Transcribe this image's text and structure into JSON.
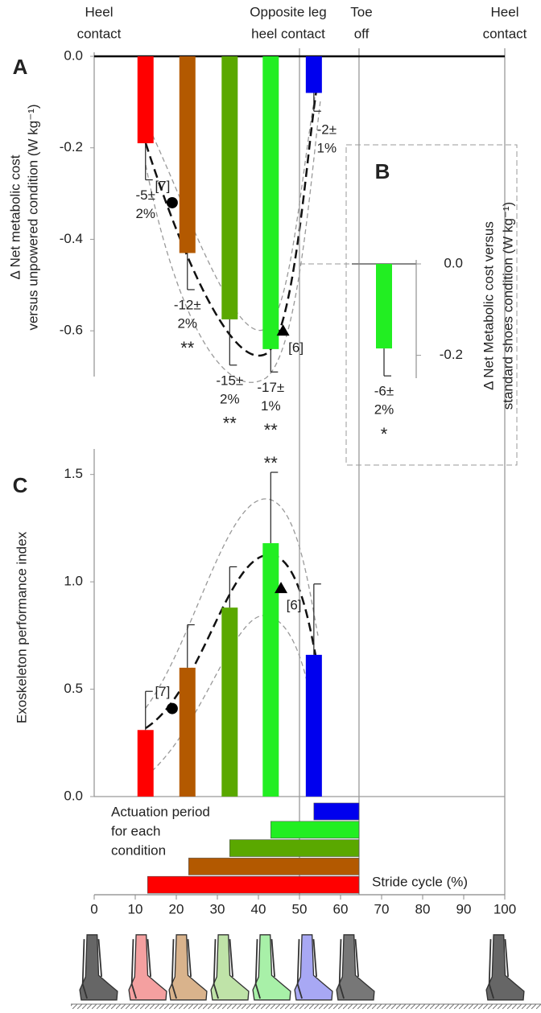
{
  "header": {
    "events": [
      {
        "x": 0,
        "label": [
          "Heel",
          "contact"
        ]
      },
      {
        "x": 50,
        "label": [
          "Opposite leg",
          "heel contact"
        ]
      },
      {
        "x": 64.5,
        "label": [
          "Toe",
          "off"
        ]
      },
      {
        "x": 100,
        "label": [
          "Heel",
          "contact"
        ]
      }
    ]
  },
  "chart_data": [
    {
      "type": "bar",
      "panel": "A",
      "ylabel": [
        "Δ Net metabolic cost",
        "versus unpowered condition (W kg⁻¹)"
      ],
      "x": [
        12.5,
        22.7,
        33,
        43,
        53.5
      ],
      "values": [
        -0.19,
        -0.43,
        -0.575,
        -0.64,
        -0.08
      ],
      "errors": [
        0.08,
        0.08,
        0.1,
        0.05,
        0.04
      ],
      "colors": [
        "#ff0000",
        "#b35900",
        "#5aa800",
        "#22ee22",
        "#0000ee"
      ],
      "annotations": [
        [
          "-5±",
          "2%"
        ],
        [
          "-12±",
          "2%"
        ],
        [
          "-15±",
          "2%"
        ],
        [
          "-17±",
          "1%"
        ],
        [
          "-2±",
          "1%"
        ]
      ],
      "significance": [
        null,
        "**",
        "**",
        "**",
        null
      ],
      "significance_color": "#111111",
      "reference_points": [
        {
          "x": 19,
          "y": -0.32,
          "label": "[7]",
          "marker": "circle"
        },
        {
          "x": 46,
          "y": -0.6,
          "label": "[6]",
          "marker": "triangle"
        }
      ],
      "xlim": [
        0,
        100
      ],
      "ylim": [
        -0.7,
        0
      ],
      "yticks": [
        {
          "value": 0,
          "label": "0.0"
        },
        {
          "value": -0.2,
          "label": "-0.2"
        },
        {
          "value": -0.4,
          "label": "-0.4"
        },
        {
          "value": -0.6,
          "label": "-0.6"
        }
      ]
    },
    {
      "type": "bar",
      "panel": "B",
      "ylabel": [
        "Δ Net Metabolic cost versus",
        "standard shoes condition (W kg⁻¹)"
      ],
      "values": [
        -0.185
      ],
      "errors": [
        0.06
      ],
      "colors": [
        "#22ee22"
      ],
      "annotations": [
        [
          "-6±",
          "2%"
        ]
      ],
      "significance": [
        "*"
      ],
      "significance_color": "#111111",
      "ylim": [
        -0.25,
        0
      ],
      "yticks": [
        {
          "value": 0,
          "label": "0.0"
        },
        {
          "value": -0.2,
          "label": "-0.2"
        }
      ]
    },
    {
      "type": "bar",
      "panel": "C",
      "ylabel": [
        "Exoskeleton  performance index"
      ],
      "x": [
        12.5,
        22.7,
        33,
        43,
        53.5
      ],
      "values": [
        0.31,
        0.6,
        0.88,
        1.18,
        0.66
      ],
      "errors": [
        0.18,
        0.2,
        0.19,
        0.33,
        0.33
      ],
      "colors": [
        "#ff0000",
        "#b35900",
        "#5aa800",
        "#22ee22",
        "#0000ee"
      ],
      "significance": [
        null,
        null,
        null,
        "**",
        null
      ],
      "significance_color": "#ff2020",
      "reference_points": [
        {
          "x": 19,
          "y": 0.41,
          "label": "[7]",
          "marker": "circle"
        },
        {
          "x": 45.5,
          "y": 0.97,
          "label": "[6]",
          "marker": "triangle"
        }
      ],
      "xlim": [
        0,
        100
      ],
      "ylim": [
        0,
        1.6
      ],
      "yticks": [
        {
          "value": 0,
          "label": "0.0"
        },
        {
          "value": 0.5,
          "label": "0.5"
        },
        {
          "value": 1,
          "label": "1.0"
        },
        {
          "value": 1.5,
          "label": "1.5"
        }
      ]
    },
    {
      "type": "range",
      "title": [
        "Actuation period",
        "for each",
        "condition"
      ],
      "xlabel": "Stride cycle (%)",
      "start": [
        13,
        23,
        33,
        43,
        53.5
      ],
      "end": [
        64.5,
        64.5,
        64.5,
        64.5,
        64.5
      ],
      "colors": [
        "#ff0000",
        "#b35900",
        "#5aa800",
        "#22ee22",
        "#0000ee"
      ],
      "xlim": [
        0,
        100
      ],
      "xticks": [
        0,
        10,
        20,
        30,
        40,
        50,
        60,
        70,
        80,
        90,
        100
      ]
    }
  ]
}
